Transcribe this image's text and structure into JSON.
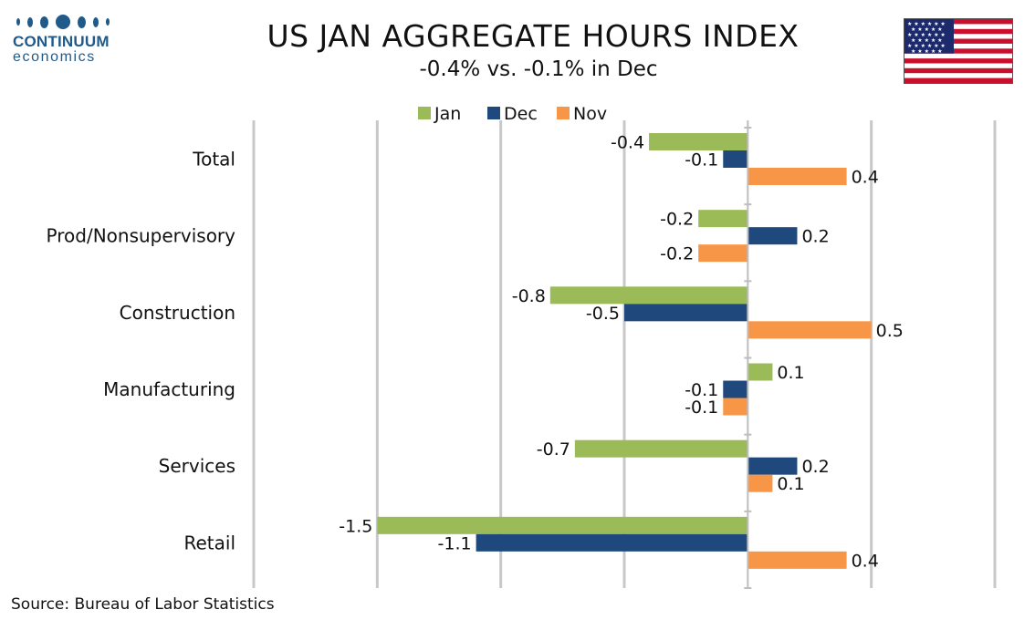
{
  "brand": {
    "name": "CONTINUUM",
    "sub": "economics"
  },
  "header": {
    "title": "US JAN AGGREGATE HOURS INDEX",
    "subtitle": "-0.4% vs. -0.1% in Dec"
  },
  "footer": {
    "source": "Source: Bureau of Labor Statistics"
  },
  "chart_data": {
    "type": "bar",
    "orientation": "horizontal",
    "categories": [
      "Total",
      "Prod/Nonsupervisory",
      "Construction",
      "Manufacturing",
      "Services",
      "Retail"
    ],
    "series": [
      {
        "name": "Jan",
        "color": "#9bbb59",
        "values": [
          -0.4,
          -0.2,
          -0.8,
          0.1,
          -0.7,
          -1.5
        ]
      },
      {
        "name": "Dec",
        "color": "#1f497d",
        "values": [
          -0.1,
          0.2,
          -0.5,
          -0.1,
          0.2,
          -1.1
        ]
      },
      {
        "name": "Nov",
        "color": "#f79646",
        "values": [
          0.4,
          -0.2,
          0.5,
          -0.1,
          0.1,
          0.4
        ]
      }
    ],
    "xlim": [
      -2.0,
      1.0
    ],
    "grid": true,
    "legend": "top-center",
    "data_labels": true
  },
  "icons": {
    "flag": "us-flag-icon",
    "logo": "continuum-logo-icon"
  }
}
